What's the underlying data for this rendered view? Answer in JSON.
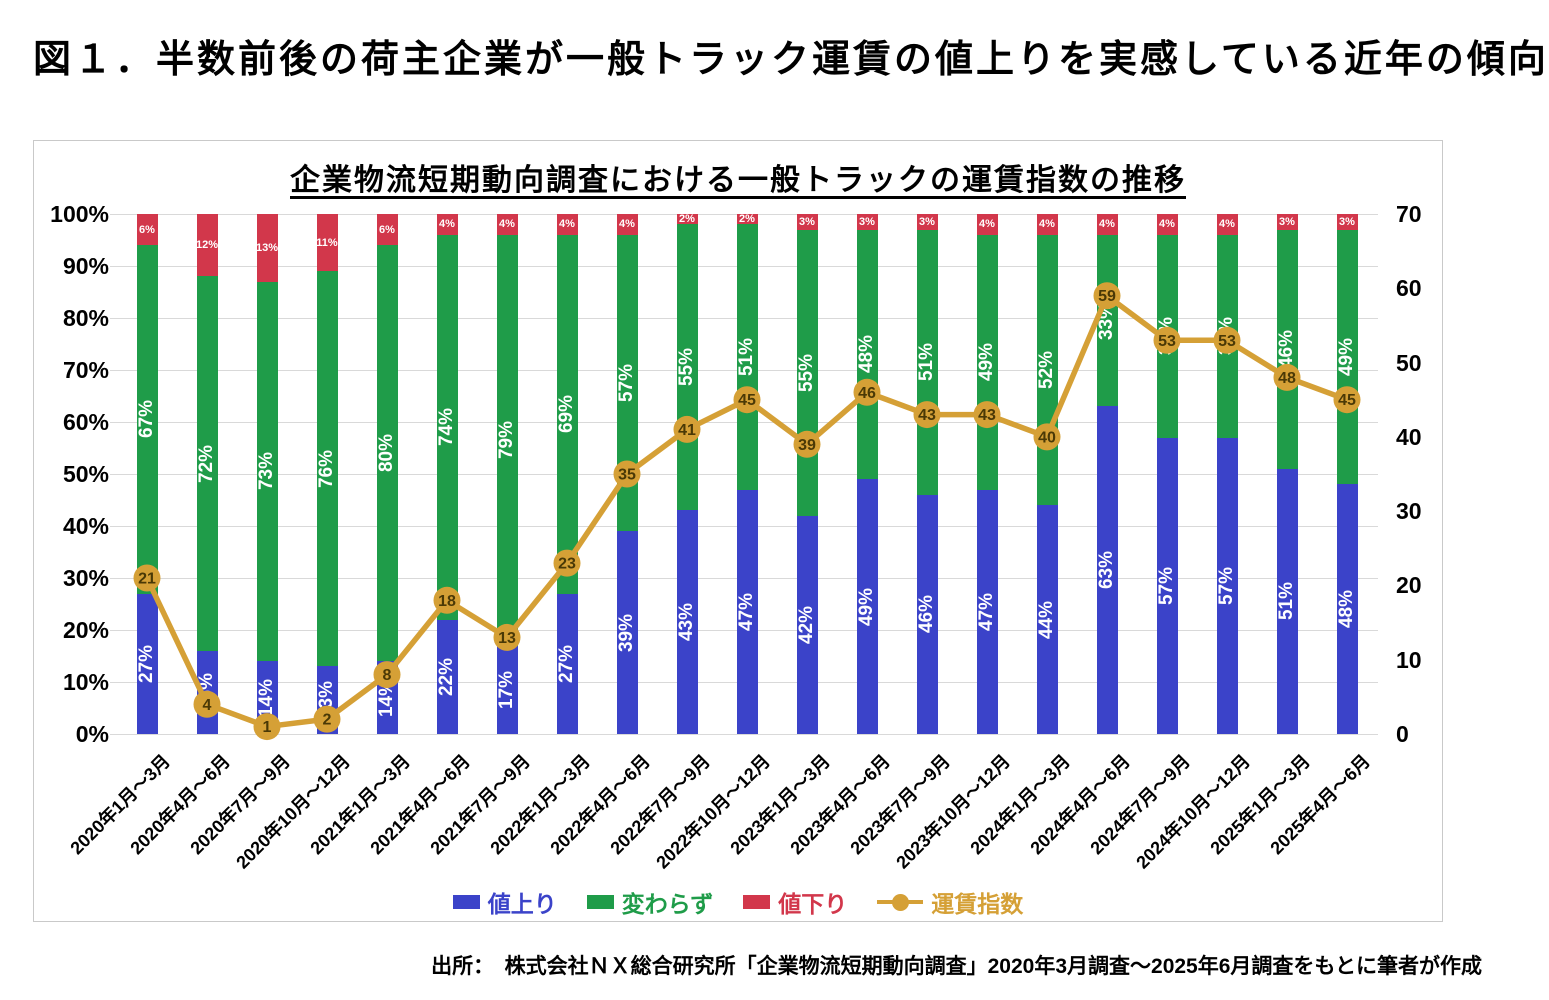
{
  "page": {
    "title": "図１．半数前後の荷主企業が一般トラック運賃の値上りを実感している近年の傾向",
    "source": "出所：　株式会社ＮＸ総合研究所「企業物流短期動向調査」2020年3月調査～2025年6月調査をもとに筆者が作成"
  },
  "chart": {
    "title": "企業物流短期動向調査における一般トラックの運賃指数の推移",
    "colors": {
      "raise_blue": "#3b43c9",
      "unchanged_green": "#1f9c49",
      "lower_red": "#d2374b",
      "index_gold": "#d5a036",
      "marker_text": "#4a3906",
      "gridline": "#d9d9d9",
      "box_border": "#c9c9c9"
    }
  },
  "chart_data": {
    "type": "bar",
    "subtype": "stacked-100pct-with-line",
    "title": "企業物流短期動向調査における一般トラックの運賃指数の推移",
    "categories": [
      "2020年1月～3月",
      "2020年4月～6月",
      "2020年7月～9月",
      "2020年10月～12月",
      "2021年1月～3月",
      "2021年4月～6月",
      "2021年7月～9月",
      "2022年1月～3月",
      "2022年4月～6月",
      "2022年7月～9月",
      "2022年10月～12月",
      "2023年1月～3月",
      "2023年4月～6月",
      "2023年7月～9月",
      "2023年10月～12月",
      "2024年1月～3月",
      "2024年4月～6月",
      "2024年7月～9月",
      "2024年10月～12月",
      "2025年1月～3月",
      "2025年4月～6月"
    ],
    "series": [
      {
        "name": "値上り",
        "type": "bar",
        "axis": "left",
        "color": "#3b43c9",
        "values": [
          27,
          16,
          14,
          13,
          14,
          22,
          17,
          27,
          39,
          43,
          47,
          42,
          49,
          46,
          47,
          44,
          63,
          57,
          57,
          51,
          48
        ]
      },
      {
        "name": "変わらず",
        "type": "bar",
        "axis": "left",
        "color": "#1f9c49",
        "values": [
          67,
          72,
          73,
          76,
          80,
          74,
          79,
          69,
          57,
          55,
          51,
          55,
          48,
          51,
          49,
          52,
          33,
          39,
          39,
          46,
          49
        ]
      },
      {
        "name": "値下り",
        "type": "bar",
        "axis": "left",
        "color": "#d2374b",
        "values": [
          6,
          12,
          13,
          11,
          6,
          4,
          4,
          4,
          4,
          2,
          2,
          3,
          3,
          3,
          4,
          4,
          4,
          4,
          4,
          3,
          3
        ]
      },
      {
        "name": "運賃指数",
        "type": "line",
        "axis": "right",
        "color": "#d5a036",
        "values": [
          21,
          4,
          1,
          2,
          8,
          18,
          13,
          23,
          35,
          41,
          45,
          39,
          46,
          43,
          43,
          40,
          59,
          53,
          53,
          48,
          45
        ]
      }
    ],
    "left_axis": {
      "min": 0,
      "max": 100,
      "ticks": [
        "100%",
        "90%",
        "80%",
        "70%",
        "60%",
        "50%",
        "40%",
        "30%",
        "20%",
        "10%",
        "0%"
      ]
    },
    "right_axis": {
      "min": 0,
      "max": 70,
      "ticks": [
        "70",
        "60",
        "50",
        "40",
        "30",
        "20",
        "10",
        "0"
      ]
    },
    "grid": true,
    "legend_position": "bottom",
    "legend": [
      "値上り",
      "変わらず",
      "値下り",
      "運賃指数"
    ]
  }
}
